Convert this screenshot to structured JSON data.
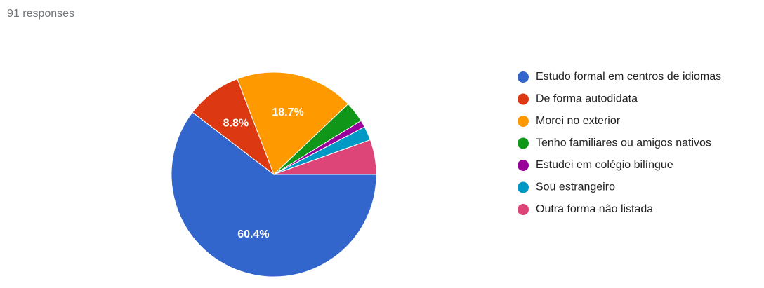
{
  "chart_data": {
    "type": "pie",
    "subtitle": "91 responses",
    "categories": [
      "Estudo formal em centros de idiomas",
      "De forma autodidata",
      "Morei no exterior",
      "Tenho familiares ou amigos nativos",
      "Estudei em colégio bilíngue",
      "Sou estrangeiro",
      "Outra forma não listada"
    ],
    "values": [
      60.4,
      8.8,
      18.7,
      3.3,
      1.1,
      2.2,
      5.5
    ],
    "value_labels": [
      "60.4%",
      "8.8%",
      "18.7%",
      null,
      null,
      null,
      null
    ],
    "colors": [
      "#3366cc",
      "#dc3912",
      "#ff9900",
      "#109618",
      "#990099",
      "#0099c6",
      "#dd4477"
    ]
  }
}
